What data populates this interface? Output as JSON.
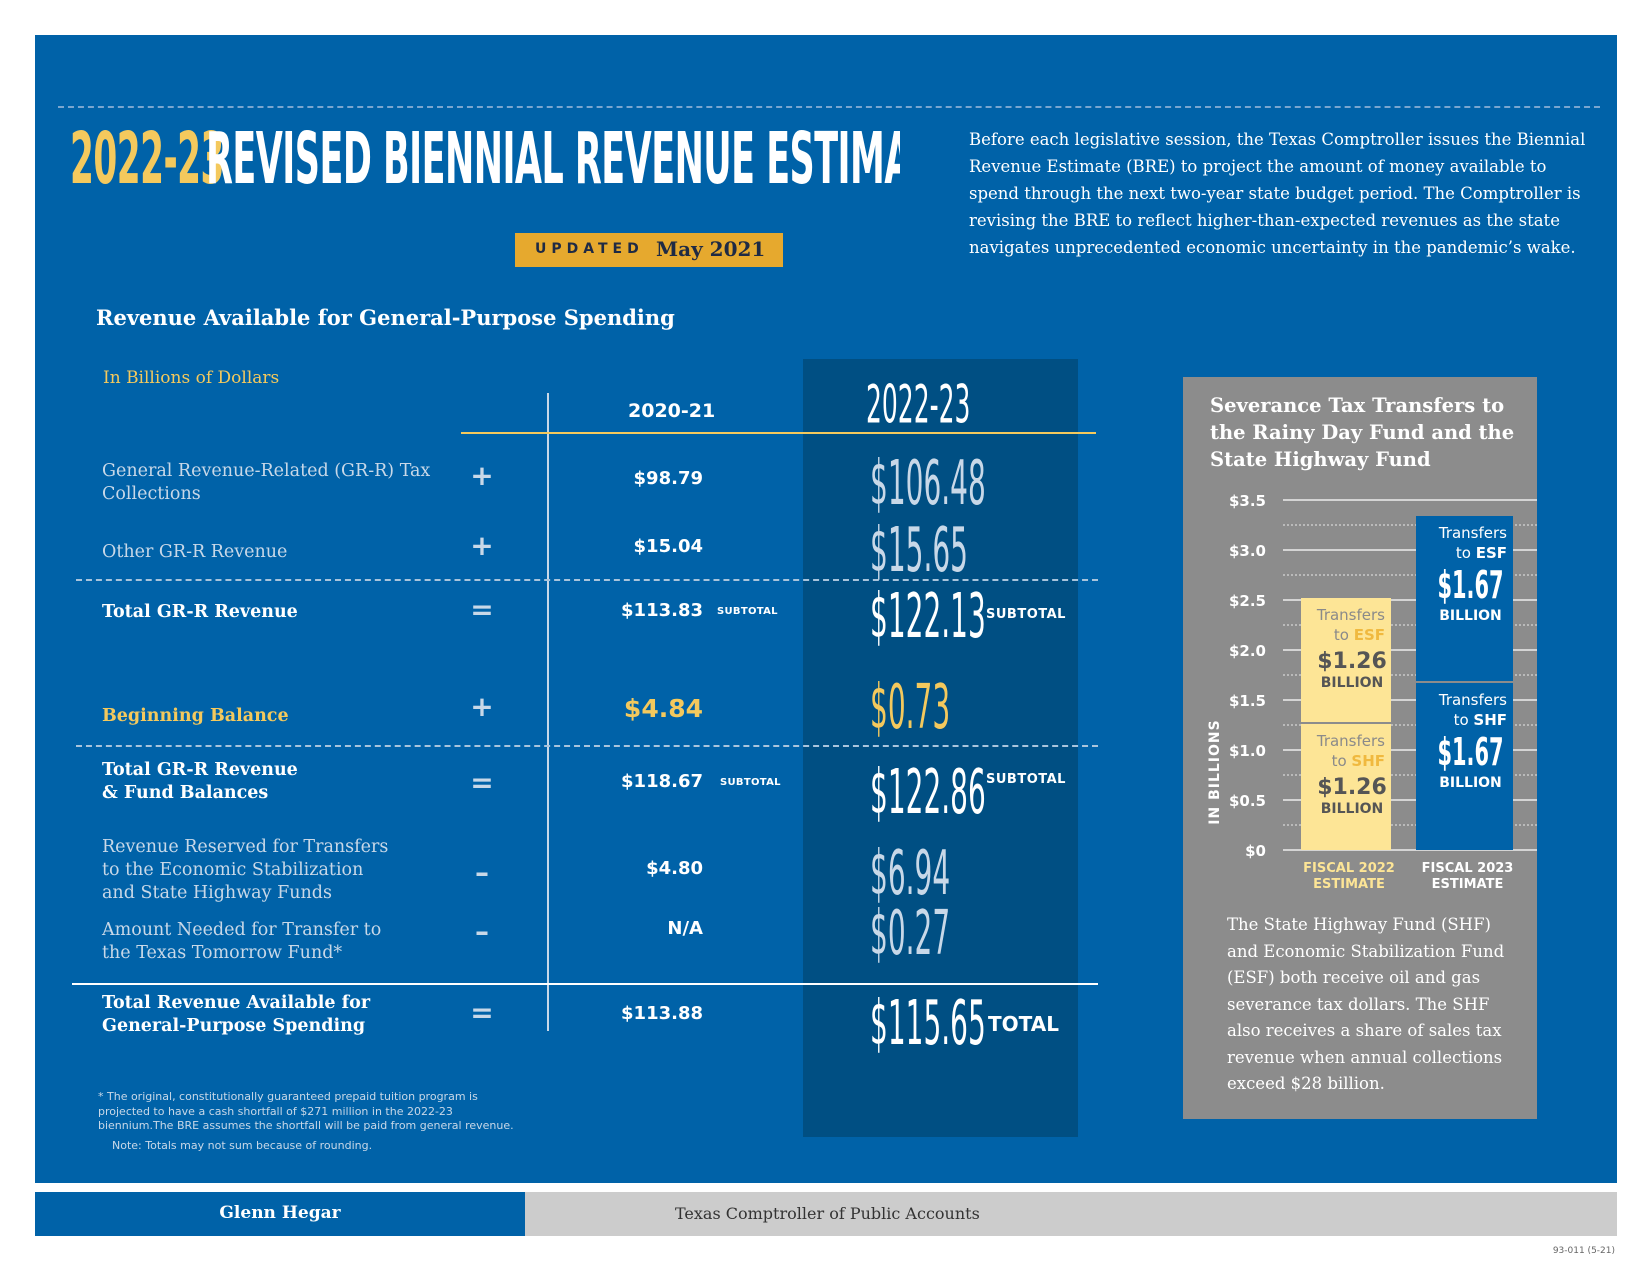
{
  "header": {
    "title_year": "2022-23",
    "title_text": "REVISED BIENNIAL REVENUE ESTIMATE",
    "updated_label": "UPDATED",
    "updated_date": "May 2021",
    "intro": "Before each legislative session, the Texas Comptroller issues the Biennial Revenue Estimate (BRE) to project the amount of money available to spend through the next two-year state budget period. The Comptroller is revising the BRE to reflect higher-than-expected revenues as the state navigates unprecedented economic uncertainty in the pandemic’s wake."
  },
  "table": {
    "section_title": "Revenue Available for General-Purpose Spending",
    "units": "In Billions of Dollars",
    "col_2021": "2020-21",
    "col_2223": "2022-23",
    "rows": [
      {
        "label": "General Revenue-Related (GR-R) Tax Collections",
        "op": "+",
        "v2021": "$98.79",
        "v2223": "$106.48"
      },
      {
        "label": "Other GR-R Revenue",
        "op": "+",
        "v2021": "$15.04",
        "v2223": "$15.65"
      },
      {
        "label": "Total GR-R Revenue",
        "op": "=",
        "v2021": "$113.83",
        "sub2021": "SUBTOTAL",
        "v2223": "$122.13",
        "sub2223": "SUBTOTAL"
      },
      {
        "label": "Beginning Balance",
        "op": "+",
        "v2021": "$4.84",
        "v2223": "$0.73"
      },
      {
        "label_line1": "Total GR-R Revenue",
        "label_line2": "& Fund Balances",
        "op": "=",
        "v2021": "$118.67",
        "sub2021": "SUBTOTAL",
        "v2223": "$122.86",
        "sub2223": "SUBTOTAL"
      },
      {
        "label_line1": "Revenue Reserved for Transfers",
        "label_line2": "to the Economic Stabilization",
        "label_line3": "and State Highway Funds",
        "op": "–",
        "v2021": "$4.80",
        "v2223": "$6.94"
      },
      {
        "label_line1": "Amount Needed for Transfer to",
        "label_line2": "the Texas Tomorrow Fund*",
        "op": "–",
        "v2021": "N/A",
        "v2223": "$0.27"
      },
      {
        "label_line1": "Total Revenue Available for",
        "label_line2": "General-Purpose Spending",
        "op": "=",
        "v2021": "$113.88",
        "v2223": "$115.65",
        "sub2223": "TOTAL"
      }
    ],
    "footnote": "* The original, constitutionally guaranteed prepaid tuition program is projected to have a cash shortfall of $271 million in the 2022-23 biennium.The BRE assumes the shortfall will be paid from general revenue.",
    "note": "Note: Totals may not sum because of rounding."
  },
  "sidebar": {
    "title": "Severance Tax Transfers to the Rainy Day Fund and the State Highway Fund",
    "text": "The State Highway Fund (SHF) and Economic Stabilization Fund (ESF) both receive oil and gas severance tax dollars. The SHF also receives a share of sales tax revenue when annual collections exceed $28 billion."
  },
  "chart_data": {
    "type": "bar",
    "stacked": true,
    "ylabel": "IN BILLIONS",
    "ylim": [
      0,
      3.5
    ],
    "yticks": [
      "$0",
      "$0.5",
      "$1.0",
      "$1.5",
      "$2.0",
      "$2.5",
      "$3.0",
      "$3.5"
    ],
    "categories": [
      "FISCAL 2022 ESTIMATE",
      "FISCAL 2023 ESTIMATE"
    ],
    "category_lines": [
      [
        "FISCAL 2022",
        "ESTIMATE"
      ],
      [
        "FISCAL 2023",
        "ESTIMATE"
      ]
    ],
    "series": [
      {
        "name": "SHF",
        "values": [
          1.26,
          1.67
        ],
        "value_labels": [
          "$1.26",
          "$1.67"
        ]
      },
      {
        "name": "ESF",
        "values": [
          1.26,
          1.67
        ],
        "value_labels": [
          "$1.26",
          "$1.67"
        ]
      }
    ],
    "segment_text": {
      "transfers": "Transfers",
      "to": "to",
      "billion": "BILLION"
    },
    "colors": {
      "fy2022": "#fde596",
      "fy2022_text_accent": "#f0b93f",
      "fy2022_text": "#8a8a8a",
      "fy2023": "#0062a8",
      "fy2022_label": "#fde596"
    },
    "grid": "dotted"
  },
  "footer": {
    "name": "Glenn Hegar",
    "agency": "Texas Comptroller of Public Accounts",
    "code": "93-011 (5-21)"
  },
  "colors": {
    "panel": "#0062a8",
    "dark_column": "#004f83",
    "gold": "#f4c95d",
    "badge": "#e6a92e",
    "sidebar": "#8c8c8c"
  }
}
